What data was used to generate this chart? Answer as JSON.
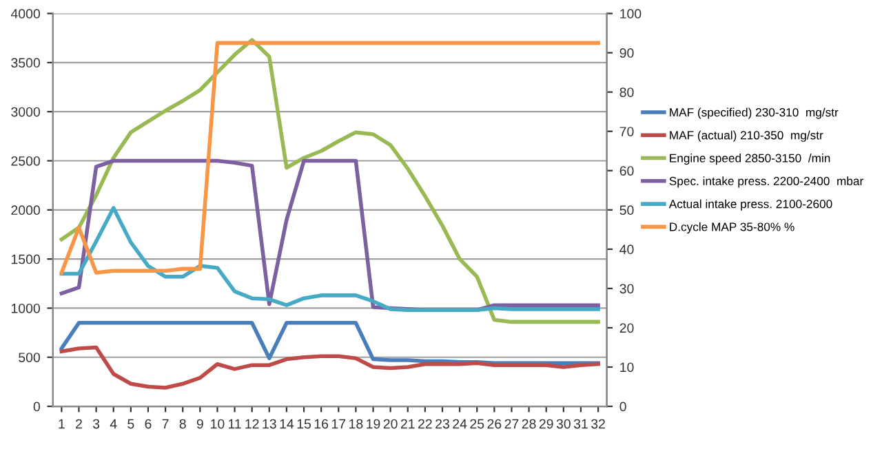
{
  "chart_data": {
    "type": "line",
    "categories": [
      "1",
      "2",
      "3",
      "4",
      "5",
      "6",
      "7",
      "8",
      "9",
      "10",
      "11",
      "12",
      "13",
      "14",
      "15",
      "16",
      "17",
      "18",
      "19",
      "20",
      "21",
      "22",
      "23",
      "24",
      "25",
      "26",
      "27",
      "28",
      "29",
      "30",
      "31",
      "32"
    ],
    "series": [
      {
        "name": "MAF (specified) 230-310  mg/str",
        "color": "#4a7ebb",
        "values": [
          590,
          850,
          850,
          850,
          850,
          850,
          850,
          850,
          850,
          850,
          850,
          850,
          490,
          850,
          850,
          850,
          850,
          850,
          480,
          470,
          470,
          460,
          460,
          450,
          450,
          440,
          440,
          440,
          440,
          440,
          440,
          440
        ]
      },
      {
        "name": "MAF (actual) 210-350  mg/str",
        "color": "#be4b48",
        "values": [
          560,
          590,
          600,
          330,
          230,
          200,
          190,
          230,
          290,
          430,
          380,
          420,
          420,
          480,
          500,
          510,
          510,
          490,
          400,
          390,
          400,
          430,
          430,
          430,
          440,
          420,
          420,
          420,
          420,
          400,
          420,
          430
        ]
      },
      {
        "name": "Engine speed 2850-3150  /min",
        "color": "#98b954",
        "values": [
          1700,
          1820,
          2150,
          2530,
          2790,
          2900,
          3010,
          3110,
          3220,
          3400,
          3580,
          3730,
          3560,
          2430,
          2530,
          2600,
          2700,
          2790,
          2770,
          2660,
          2420,
          2140,
          1840,
          1500,
          1320,
          880,
          860,
          860,
          860,
          860,
          860,
          860
        ]
      },
      {
        "name": "Spec. intake press. 2200-2400  mbar",
        "color": "#7d60a0",
        "values": [
          1150,
          1210,
          2440,
          2500,
          2500,
          2500,
          2500,
          2500,
          2500,
          2500,
          2480,
          2450,
          1040,
          1900,
          2500,
          2500,
          2500,
          2500,
          1010,
          1000,
          990,
          980,
          980,
          980,
          980,
          1030,
          1030,
          1030,
          1030,
          1030,
          1030,
          1030
        ]
      },
      {
        "name": "Actual intake press. 2100-2600",
        "color": "#46aac5",
        "values": [
          1350,
          1350,
          1680,
          2020,
          1670,
          1430,
          1320,
          1320,
          1430,
          1410,
          1170,
          1100,
          1090,
          1030,
          1100,
          1130,
          1130,
          1130,
          1070,
          990,
          980,
          980,
          980,
          980,
          980,
          1000,
          990,
          990,
          990,
          990,
          990,
          990
        ]
      },
      {
        "name": "D.cycle MAP 35-80% %",
        "color": "#f79646",
        "axis": "y2",
        "values": [
          34,
          45.5,
          34,
          34.5,
          34.5,
          34.5,
          34.5,
          35,
          35,
          92.5,
          92.5,
          92.5,
          92.5,
          92.5,
          92.5,
          92.5,
          92.5,
          92.5,
          92.5,
          92.5,
          92.5,
          92.5,
          92.5,
          92.5,
          92.5,
          92.5,
          92.5,
          92.5,
          92.5,
          92.5,
          92.5,
          92.5
        ]
      }
    ],
    "ylim": [
      0,
      4000
    ],
    "yticks": [
      0,
      500,
      1000,
      1500,
      2000,
      2500,
      3000,
      3500,
      4000
    ],
    "y2lim": [
      0,
      100
    ],
    "y2ticks": [
      0,
      10,
      20,
      30,
      40,
      50,
      60,
      70,
      80,
      90,
      100
    ],
    "grid": "y",
    "legend": "right",
    "marker": "none",
    "line_style": "solid"
  }
}
